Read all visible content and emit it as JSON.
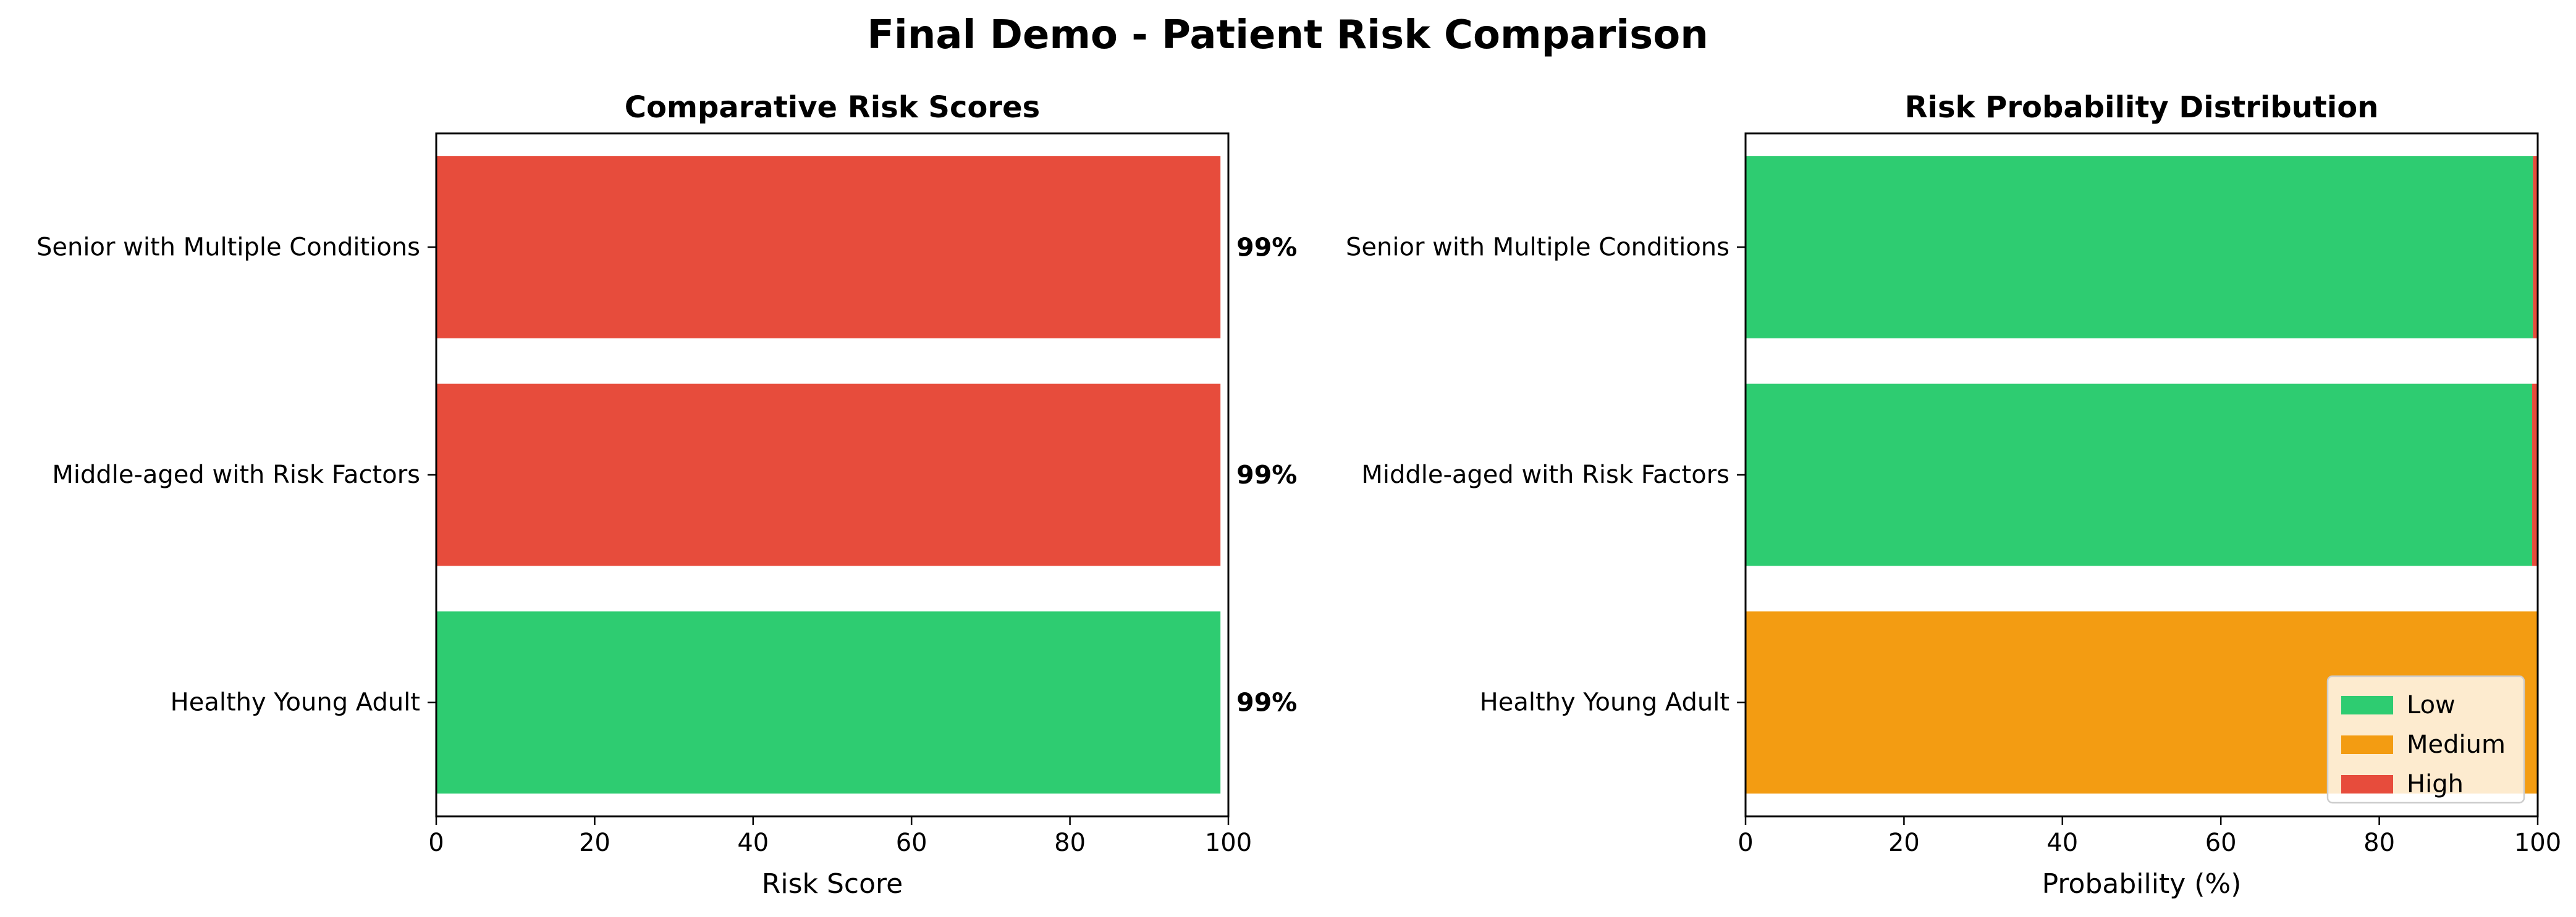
{
  "figure_title": "Final Demo - Patient Risk Comparison",
  "colors": {
    "low": "#2ecc71",
    "medium": "#f39c12",
    "high": "#e74c3c"
  },
  "chart_data": [
    {
      "type": "bar",
      "orientation": "horizontal",
      "title": "Comparative Risk Scores",
      "xlabel": "Risk Score",
      "ylabel": "",
      "xlim": [
        0,
        100
      ],
      "xticks": [
        "0",
        "20",
        "40",
        "60",
        "80",
        "100"
      ],
      "categories": [
        "Healthy Young Adult",
        "Middle-aged with Risk Factors",
        "Senior with Multiple Conditions"
      ],
      "values": [
        99,
        99,
        99
      ],
      "bar_colors": [
        "#2ecc71",
        "#e74c3c",
        "#e74c3c"
      ],
      "data_labels": [
        "99%",
        "99%",
        "99%"
      ],
      "grid": false
    },
    {
      "type": "bar",
      "stacked": true,
      "orientation": "horizontal",
      "title": "Risk Probability Distribution",
      "xlabel": "Probability (%)",
      "ylabel": "",
      "xlim": [
        0,
        100
      ],
      "xticks": [
        "0",
        "20",
        "40",
        "60",
        "80",
        "100"
      ],
      "categories": [
        "Healthy Young Adult",
        "Middle-aged with Risk Factors",
        "Senior with Multiple Conditions"
      ],
      "series": [
        {
          "name": "Low",
          "color": "#2ecc71",
          "values": [
            0,
            99.3,
            99.4
          ]
        },
        {
          "name": "Medium",
          "color": "#f39c12",
          "values": [
            100,
            0,
            0
          ]
        },
        {
          "name": "High",
          "color": "#e74c3c",
          "values": [
            0,
            0.7,
            0.6
          ]
        }
      ],
      "legend_position": "lower-right",
      "grid": false
    }
  ]
}
